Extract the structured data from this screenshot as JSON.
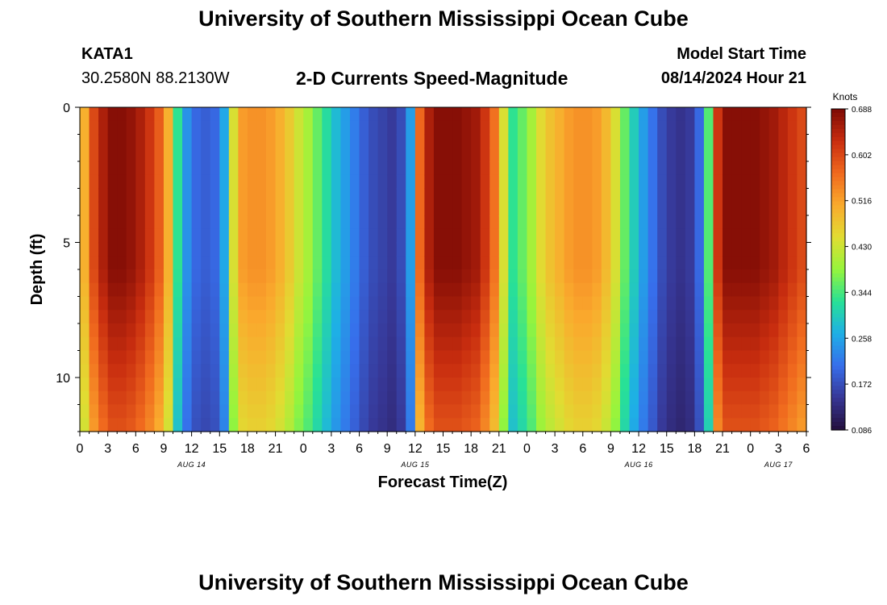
{
  "page": {
    "title_top": "University of Southern Mississippi Ocean Cube",
    "title_bottom": "University of Southern Mississippi Ocean Cube",
    "station_id": "KATA1",
    "coordinates": "30.2580N  88.2130W",
    "subtitle": "2-D Currents Speed-Magnitude",
    "model_start_label": "Model Start Time",
    "model_start_value": "08/14/2024 Hour 21"
  },
  "chart_data": {
    "type": "heatmap",
    "title": "2-D Currents Speed-Magnitude",
    "xlabel": "Forecast Time(Z)",
    "ylabel": "Depth (ft)",
    "x_range_hours": [
      0,
      78
    ],
    "y_range_ft": [
      0,
      12
    ],
    "y_ticks": [
      0,
      5,
      10
    ],
    "x_tick_labels": [
      "0",
      "3",
      "6",
      "9",
      "12",
      "15",
      "18",
      "21",
      "0",
      "3",
      "6",
      "9",
      "12",
      "15",
      "18",
      "21",
      "0",
      "3",
      "6",
      "9",
      "12",
      "15",
      "18",
      "21",
      "0",
      "3",
      "6"
    ],
    "date_labels": [
      {
        "label": "AUG 14",
        "hour": 12
      },
      {
        "label": "AUG 15",
        "hour": 36
      },
      {
        "label": "AUG 16",
        "hour": 60
      },
      {
        "label": "AUG 17",
        "hour": 75
      }
    ],
    "colorbar": {
      "unit": "Knots",
      "min": 0.086,
      "max": 0.688,
      "ticks": [
        "0.688",
        "0.602",
        "0.516",
        "0.430",
        "0.344",
        "0.258",
        "0.172",
        "0.086"
      ]
    },
    "surface_speed_profile": {
      "hours": [
        0,
        1,
        2,
        3,
        4,
        5,
        6,
        7,
        8,
        9,
        10,
        11,
        12,
        13,
        14,
        15,
        16,
        17,
        18,
        19,
        20,
        21,
        22,
        23,
        24,
        25,
        26,
        27,
        28,
        29,
        30,
        31,
        32,
        33,
        34,
        35,
        36,
        37,
        38,
        39,
        40,
        41,
        42,
        43,
        44,
        45,
        46,
        47,
        48,
        49,
        50,
        51,
        52,
        53,
        54,
        55,
        56,
        57,
        58,
        59,
        60,
        61,
        62,
        63,
        64,
        65,
        66,
        67,
        68,
        69,
        70,
        71,
        72,
        73,
        74,
        75,
        76,
        77,
        78
      ],
      "knots": [
        0.5,
        0.6,
        0.65,
        0.68,
        0.68,
        0.67,
        0.65,
        0.62,
        0.58,
        0.5,
        0.33,
        0.24,
        0.2,
        0.19,
        0.2,
        0.26,
        0.44,
        0.52,
        0.53,
        0.53,
        0.52,
        0.5,
        0.47,
        0.43,
        0.4,
        0.36,
        0.32,
        0.28,
        0.25,
        0.22,
        0.19,
        0.17,
        0.16,
        0.15,
        0.17,
        0.25,
        0.57,
        0.65,
        0.68,
        0.68,
        0.68,
        0.67,
        0.66,
        0.62,
        0.56,
        0.44,
        0.33,
        0.36,
        0.4,
        0.45,
        0.48,
        0.5,
        0.52,
        0.53,
        0.53,
        0.52,
        0.49,
        0.44,
        0.36,
        0.3,
        0.25,
        0.21,
        0.17,
        0.15,
        0.14,
        0.15,
        0.2,
        0.35,
        0.62,
        0.68,
        0.68,
        0.68,
        0.68,
        0.67,
        0.66,
        0.64,
        0.62,
        0.6,
        0.58
      ],
      "depth_decay_per_ft": 0.022,
      "depth_decay_start_ft": 6
    }
  }
}
